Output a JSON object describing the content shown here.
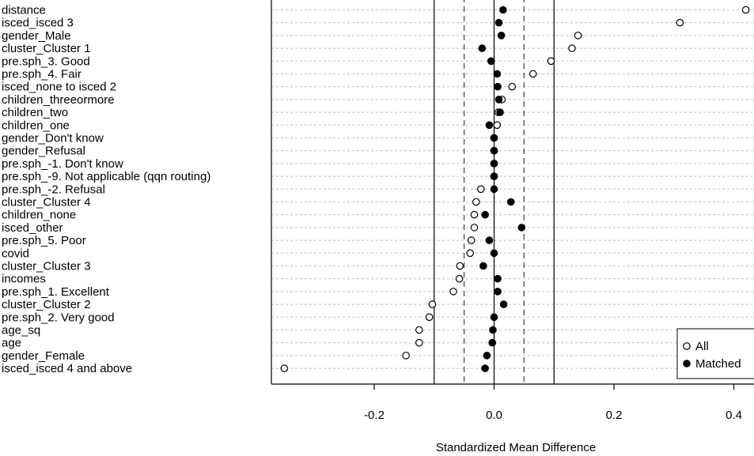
{
  "chart_data": {
    "type": "scatter",
    "title": "",
    "xlabel": "Standardized Mean Difference",
    "ylabel": "",
    "xlim": [
      -0.35,
      0.43
    ],
    "x_ticks": [
      -0.2,
      0.0,
      0.2,
      0.4
    ],
    "x_tick_labels": [
      "-0.2",
      "0.0",
      "0.2",
      "0.4"
    ],
    "reference_lines_solid": [
      -0.1,
      0.0,
      0.1
    ],
    "reference_lines_dashed": [
      -0.05,
      0.05
    ],
    "grid": "dotted horizontal lines per variable",
    "legend_position": "bottom-right",
    "variables": [
      "distance",
      "isced_isced 3",
      "gender_Male",
      "cluster_Cluster 1",
      "pre.sph_3. Good",
      "pre.sph_4. Fair",
      "isced_none to isced 2",
      "children_threeormore",
      "children_two",
      "children_one",
      "gender_Don't know",
      "gender_Refusal",
      "pre.sph_-1. Don't know",
      "pre.sph_-9. Not applicable (qqn routing)",
      "pre.sph_-2. Refusal",
      "cluster_Cluster 4",
      "children_none",
      "isced_other",
      "pre.sph_5. Poor",
      "covid",
      "cluster_Cluster 3",
      "incomes",
      "pre.sph_1. Excellent",
      "cluster_Cluster 2",
      "pre.sph_2. Very good",
      "age_sq",
      "age",
      "gender_Female",
      "isced_isced 4 and above"
    ],
    "series": [
      {
        "name": "All",
        "marker": "open-circle",
        "values": [
          0.42,
          0.31,
          0.14,
          0.13,
          0.095,
          0.065,
          0.03,
          0.013,
          0.007,
          0.005,
          0.0,
          0.0,
          0.0,
          0.0,
          -0.022,
          -0.03,
          -0.033,
          -0.033,
          -0.038,
          -0.04,
          -0.057,
          -0.058,
          -0.068,
          -0.103,
          -0.108,
          -0.125,
          -0.125,
          -0.147,
          -0.35
        ]
      },
      {
        "name": "Matched",
        "marker": "filled-circle",
        "values": [
          0.015,
          0.008,
          0.012,
          -0.02,
          -0.005,
          0.005,
          0.006,
          0.008,
          0.01,
          -0.008,
          0.0,
          0.0,
          0.0,
          0.0,
          0.0,
          0.028,
          -0.015,
          0.046,
          -0.008,
          0.0,
          -0.018,
          0.006,
          0.006,
          0.016,
          0.0,
          -0.002,
          -0.003,
          -0.012,
          -0.015
        ]
      }
    ]
  },
  "colors": {
    "line": "#000000",
    "grid": "#bfbfbf",
    "dashed": "#555555"
  }
}
